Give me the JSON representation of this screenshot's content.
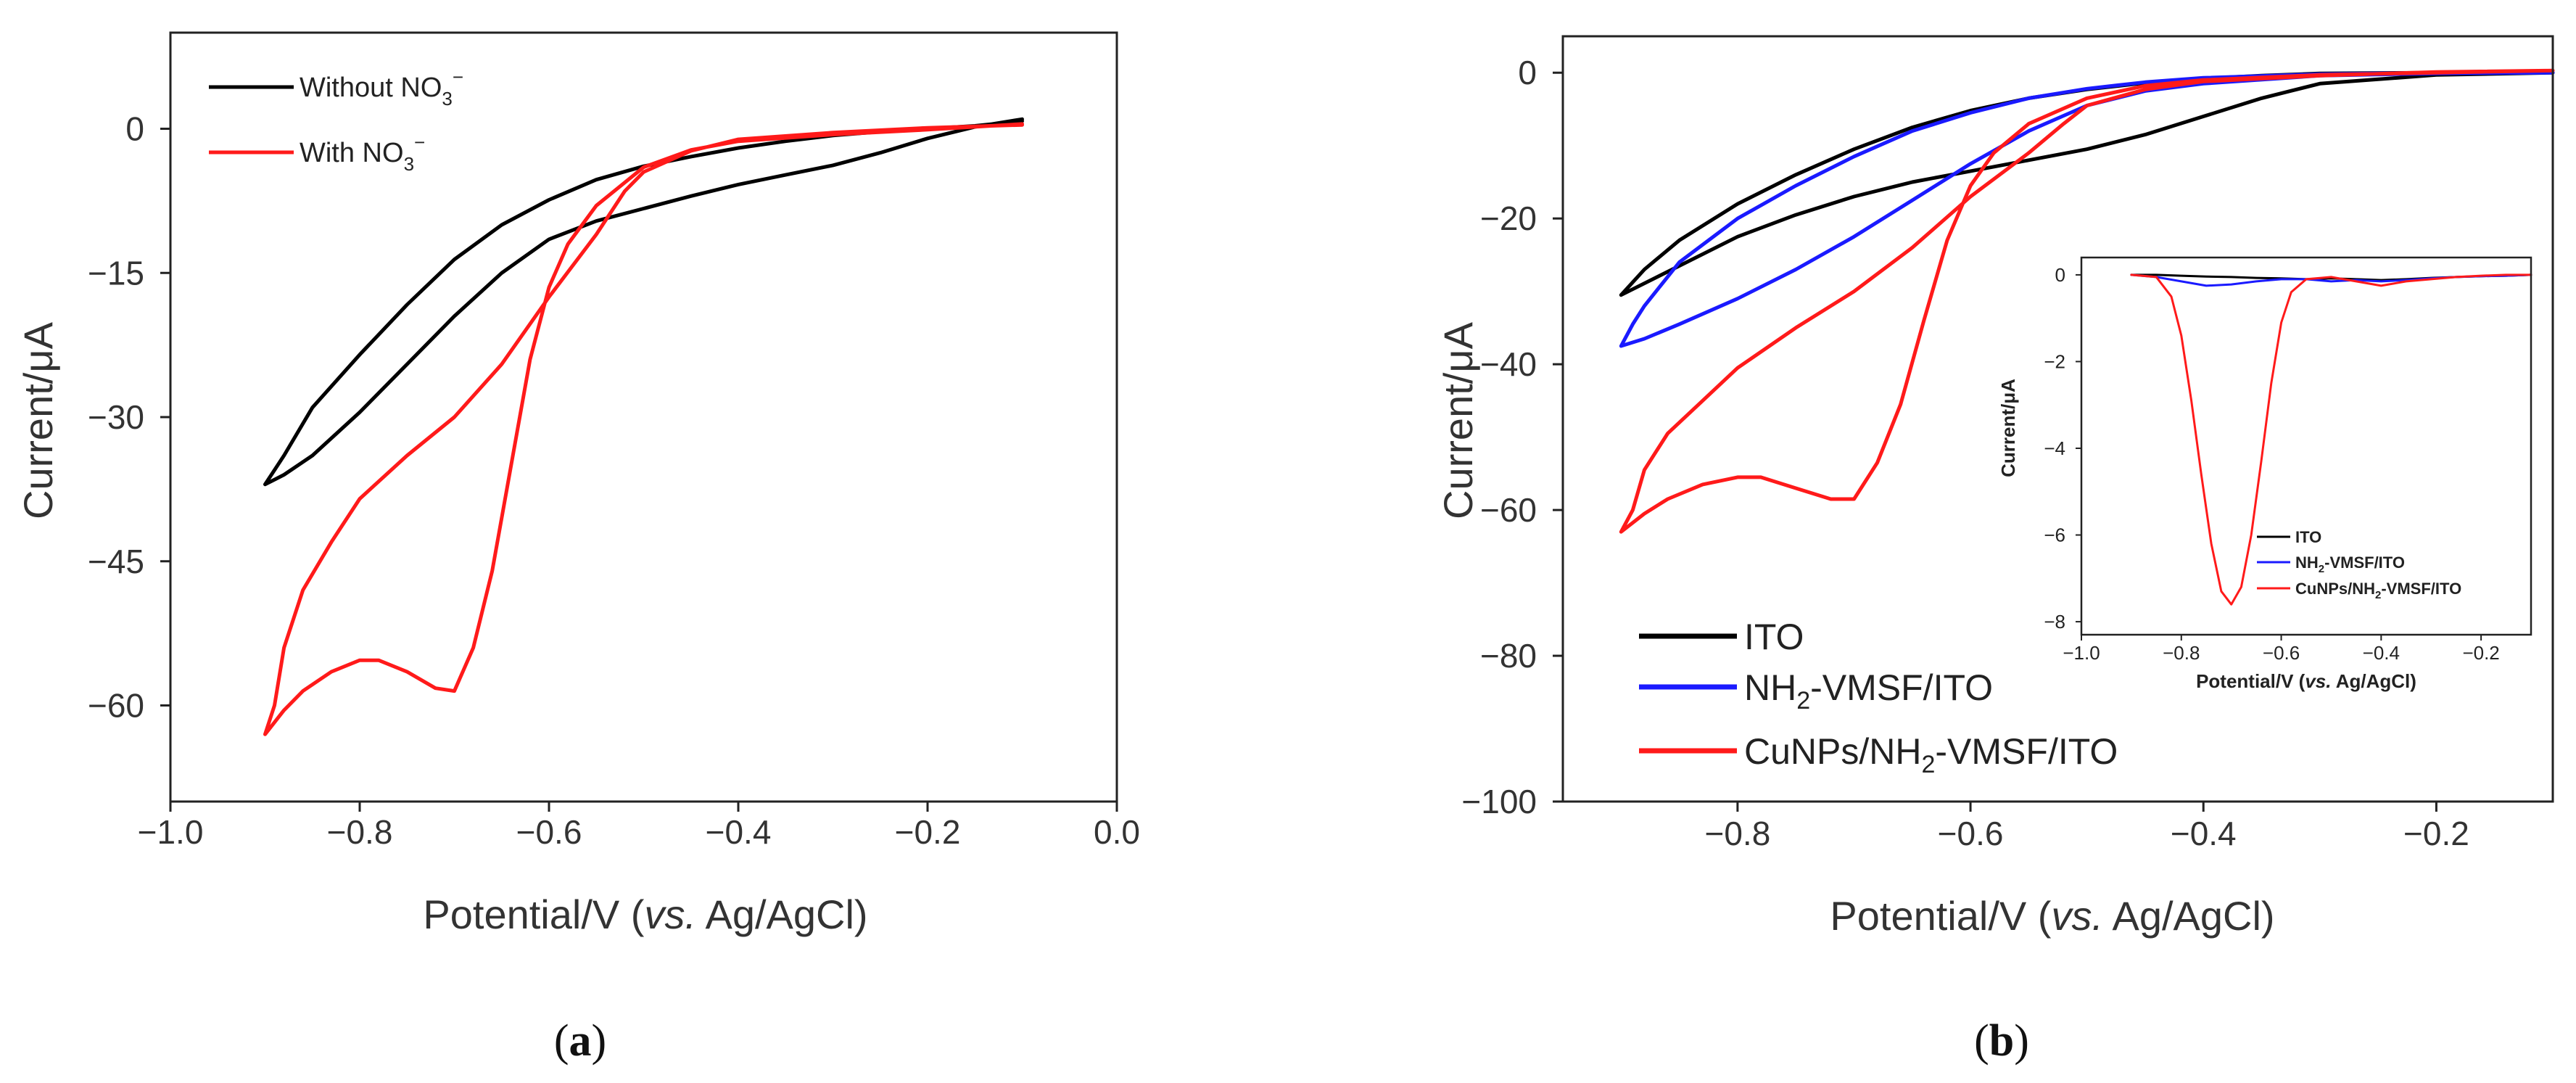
{
  "chart_data": [
    {
      "type": "line",
      "panel": "a",
      "caption_open": "(",
      "caption_letter": "a",
      "caption_close": ")",
      "xlabel_main": "Potential/V (",
      "xlabel_italic": "vs.",
      "xlabel_tail": " Ag/AgCl)",
      "ylabel": "Current/μA",
      "xlim": [
        -1.0,
        0.0
      ],
      "ylim": [
        -70,
        10
      ],
      "xticks": [
        -1.0,
        -0.8,
        -0.6,
        -0.4,
        -0.2,
        0.0
      ],
      "xtick_labels": [
        "−1.0",
        "−0.8",
        "−0.6",
        "−0.4",
        "−0.2",
        "0.0"
      ],
      "yticks": [
        0,
        -15,
        -30,
        -45,
        -60
      ],
      "ytick_labels": [
        "0",
        "−15",
        "−30",
        "−45",
        "−60"
      ],
      "legend": [
        {
          "base": "Without NO",
          "sub": "3",
          "sup": "−"
        },
        {
          "base": "With NO",
          "sub": "3",
          "sup": "−"
        }
      ],
      "series": [
        {
          "name": "Without NO3−",
          "color": "#000000",
          "x": [
            -0.1,
            -0.15,
            -0.2,
            -0.25,
            -0.3,
            -0.35,
            -0.4,
            -0.45,
            -0.5,
            -0.55,
            -0.6,
            -0.65,
            -0.7,
            -0.75,
            -0.8,
            -0.85,
            -0.88,
            -0.9,
            -0.88,
            -0.85,
            -0.8,
            -0.75,
            -0.7,
            -0.65,
            -0.6,
            -0.55,
            -0.5,
            -0.45,
            -0.4,
            -0.35,
            -0.3,
            -0.25,
            -0.2,
            -0.15,
            -0.1
          ],
          "y": [
            1.0,
            0.2,
            -1.0,
            -2.5,
            -3.8,
            -4.8,
            -5.8,
            -7.0,
            -8.3,
            -9.6,
            -11.5,
            -15.0,
            -19.5,
            -24.5,
            -29.5,
            -34.0,
            -36.0,
            -37.0,
            -34.0,
            -29.0,
            -23.5,
            -18.3,
            -13.6,
            -10.0,
            -7.4,
            -5.3,
            -3.9,
            -2.9,
            -2.0,
            -1.3,
            -0.7,
            -0.3,
            0.0,
            0.3,
            0.8
          ]
        },
        {
          "name": "With NO3−",
          "color": "#ff1a1a",
          "x": [
            -0.1,
            -0.2,
            -0.3,
            -0.4,
            -0.45,
            -0.5,
            -0.55,
            -0.58,
            -0.6,
            -0.62,
            -0.64,
            -0.66,
            -0.68,
            -0.7,
            -0.72,
            -0.75,
            -0.78,
            -0.8,
            -0.83,
            -0.86,
            -0.88,
            -0.9,
            -0.89,
            -0.88,
            -0.86,
            -0.83,
            -0.8,
            -0.75,
            -0.7,
            -0.65,
            -0.6,
            -0.55,
            -0.52,
            -0.5,
            -0.45,
            -0.4,
            -0.3,
            -0.2,
            -0.1
          ],
          "y": [
            0.5,
            -0.1,
            -0.6,
            -1.3,
            -2.2,
            -4.0,
            -8.0,
            -12.0,
            -16.5,
            -24.0,
            -35.0,
            -46.0,
            -54.0,
            -58.5,
            -58.2,
            -56.5,
            -55.3,
            -55.3,
            -56.5,
            -58.5,
            -60.5,
            -63.0,
            -60.0,
            -54.0,
            -48.0,
            -43.0,
            -38.5,
            -34.0,
            -30.0,
            -24.5,
            -17.5,
            -11.0,
            -6.5,
            -4.5,
            -2.3,
            -1.1,
            -0.4,
            0.1,
            0.4
          ]
        }
      ]
    },
    {
      "type": "line",
      "panel": "b",
      "caption_open": "(",
      "caption_letter": "b",
      "caption_close": ")",
      "xlabel_main": "Potential/V (",
      "xlabel_italic": "vs.",
      "xlabel_tail": " Ag/AgCl)",
      "ylabel": "Current/μA",
      "xlim": [
        -0.95,
        -0.1
      ],
      "ylim": [
        -100,
        5
      ],
      "xticks": [
        -0.8,
        -0.6,
        -0.4,
        -0.2
      ],
      "xtick_labels": [
        "−0.8",
        "−0.6",
        "−0.4",
        "−0.2"
      ],
      "yticks": [
        0,
        -20,
        -40,
        -60,
        -80,
        -100
      ],
      "ytick_labels": [
        "0",
        "−20",
        "−40",
        "−60",
        "−80",
        "−100"
      ],
      "legend": [
        {
          "pre": "ITO",
          "sub": "",
          "post": ""
        },
        {
          "pre": "NH",
          "sub": "2",
          "post": "-VMSF/ITO"
        },
        {
          "pre": "CuNPs/NH",
          "sub": "2",
          "post": "-VMSF/ITO"
        }
      ],
      "series": [
        {
          "name": "ITO",
          "color": "#000000",
          "x": [
            -0.1,
            -0.2,
            -0.3,
            -0.35,
            -0.4,
            -0.45,
            -0.5,
            -0.55,
            -0.6,
            -0.65,
            -0.7,
            -0.75,
            -0.8,
            -0.85,
            -0.9,
            -0.88,
            -0.85,
            -0.8,
            -0.75,
            -0.7,
            -0.65,
            -0.6,
            -0.55,
            -0.5,
            -0.45,
            -0.4,
            -0.35,
            -0.3,
            -0.2,
            -0.1
          ],
          "y": [
            0.0,
            -0.3,
            -1.5,
            -3.5,
            -6.0,
            -8.5,
            -10.5,
            -12.0,
            -13.5,
            -15.0,
            -17.0,
            -19.5,
            -22.5,
            -26.5,
            -30.5,
            -27.0,
            -23.0,
            -18.0,
            -14.0,
            -10.5,
            -7.5,
            -5.2,
            -3.5,
            -2.3,
            -1.4,
            -0.8,
            -0.4,
            -0.1,
            0.0,
            0.0
          ]
        },
        {
          "name": "NH2-VMSF/ITO",
          "color": "#1a1aff",
          "x": [
            -0.1,
            -0.2,
            -0.3,
            -0.4,
            -0.45,
            -0.5,
            -0.55,
            -0.6,
            -0.65,
            -0.7,
            -0.75,
            -0.8,
            -0.85,
            -0.88,
            -0.9,
            -0.89,
            -0.88,
            -0.85,
            -0.8,
            -0.75,
            -0.7,
            -0.65,
            -0.6,
            -0.55,
            -0.5,
            -0.45,
            -0.4,
            -0.3,
            -0.2,
            -0.1
          ],
          "y": [
            0.0,
            -0.1,
            -0.4,
            -1.5,
            -2.5,
            -4.5,
            -8.0,
            -12.5,
            -17.5,
            -22.5,
            -27.0,
            -31.0,
            -34.5,
            -36.5,
            -37.5,
            -34.5,
            -32.0,
            -26.0,
            -20.0,
            -15.5,
            -11.5,
            -8.0,
            -5.5,
            -3.5,
            -2.2,
            -1.3,
            -0.7,
            -0.2,
            0.0,
            0.0
          ]
        },
        {
          "name": "CuNPs/NH2-VMSF/ITO",
          "color": "#ff1a1a",
          "x": [
            -0.1,
            -0.2,
            -0.3,
            -0.4,
            -0.45,
            -0.5,
            -0.55,
            -0.58,
            -0.6,
            -0.62,
            -0.64,
            -0.66,
            -0.68,
            -0.7,
            -0.72,
            -0.75,
            -0.78,
            -0.8,
            -0.83,
            -0.86,
            -0.88,
            -0.9,
            -0.89,
            -0.88,
            -0.86,
            -0.83,
            -0.8,
            -0.75,
            -0.7,
            -0.65,
            -0.6,
            -0.55,
            -0.52,
            -0.5,
            -0.45,
            -0.4,
            -0.3,
            -0.2,
            -0.1
          ],
          "y": [
            0.3,
            0.0,
            -0.3,
            -1.0,
            -1.8,
            -3.5,
            -7.0,
            -11.0,
            -15.5,
            -23.0,
            -34.0,
            -45.5,
            -53.5,
            -58.5,
            -58.5,
            -57.0,
            -55.5,
            -55.5,
            -56.5,
            -58.5,
            -60.5,
            -63.0,
            -60.0,
            -54.5,
            -49.5,
            -45.0,
            -40.5,
            -35.0,
            -30.0,
            -24.0,
            -17.0,
            -11.0,
            -7.0,
            -4.5,
            -2.3,
            -1.2,
            -0.4,
            0.1,
            0.3
          ]
        }
      ]
    },
    {
      "type": "line",
      "panel": "b-inset",
      "xlabel_main": "Potential/V (",
      "xlabel_italic": "vs.",
      "xlabel_tail": " Ag/AgCl)",
      "ylabel": "Current/μA",
      "xlim": [
        -1.0,
        -0.1
      ],
      "ylim": [
        -8.3,
        0.4
      ],
      "xticks": [
        -1.0,
        -0.8,
        -0.6,
        -0.4,
        -0.2
      ],
      "xtick_labels": [
        "−1.0",
        "−0.8",
        "−0.6",
        "−0.4",
        "−0.2"
      ],
      "yticks": [
        0,
        -2,
        -4,
        -6,
        -8
      ],
      "ytick_labels": [
        "0",
        "−2",
        "−4",
        "−6",
        "−8"
      ],
      "legend": [
        {
          "pre": "ITO",
          "sub": "",
          "post": ""
        },
        {
          "pre": "NH",
          "sub": "2",
          "post": "-VMSF/ITO"
        },
        {
          "pre": "CuNPs/NH",
          "sub": "2",
          "post": "-VMSF/ITO"
        }
      ],
      "series": [
        {
          "name": "ITO",
          "color": "#000000",
          "x": [
            -0.9,
            -0.85,
            -0.8,
            -0.75,
            -0.7,
            -0.65,
            -0.6,
            -0.55,
            -0.5,
            -0.45,
            -0.4,
            -0.35,
            -0.3,
            -0.25,
            -0.2,
            -0.15,
            -0.1
          ],
          "y": [
            0.0,
            0.0,
            -0.02,
            -0.04,
            -0.05,
            -0.07,
            -0.08,
            -0.1,
            -0.08,
            -0.1,
            -0.12,
            -0.1,
            -0.07,
            -0.05,
            -0.03,
            -0.02,
            0.0
          ]
        },
        {
          "name": "NH2-VMSF/ITO",
          "color": "#1a1aff",
          "x": [
            -0.9,
            -0.85,
            -0.8,
            -0.75,
            -0.7,
            -0.65,
            -0.6,
            -0.55,
            -0.5,
            -0.45,
            -0.4,
            -0.35,
            -0.3,
            -0.25,
            -0.2,
            -0.15,
            -0.1
          ],
          "y": [
            0.0,
            -0.05,
            -0.15,
            -0.25,
            -0.22,
            -0.15,
            -0.1,
            -0.1,
            -0.15,
            -0.12,
            -0.15,
            -0.12,
            -0.08,
            -0.05,
            -0.03,
            -0.02,
            0.0
          ]
        },
        {
          "name": "CuNPs/NH2-VMSF/ITO",
          "color": "#ff1a1a",
          "x": [
            -0.9,
            -0.85,
            -0.82,
            -0.8,
            -0.78,
            -0.76,
            -0.74,
            -0.72,
            -0.7,
            -0.68,
            -0.66,
            -0.64,
            -0.62,
            -0.6,
            -0.58,
            -0.55,
            -0.5,
            -0.45,
            -0.4,
            -0.35,
            -0.3,
            -0.25,
            -0.2,
            -0.15,
            -0.1
          ],
          "y": [
            0.0,
            -0.05,
            -0.5,
            -1.4,
            -2.9,
            -4.6,
            -6.2,
            -7.3,
            -7.6,
            -7.2,
            -6.0,
            -4.3,
            -2.5,
            -1.1,
            -0.4,
            -0.1,
            -0.05,
            -0.15,
            -0.25,
            -0.15,
            -0.1,
            -0.05,
            -0.02,
            0.0,
            0.0
          ]
        }
      ]
    }
  ]
}
